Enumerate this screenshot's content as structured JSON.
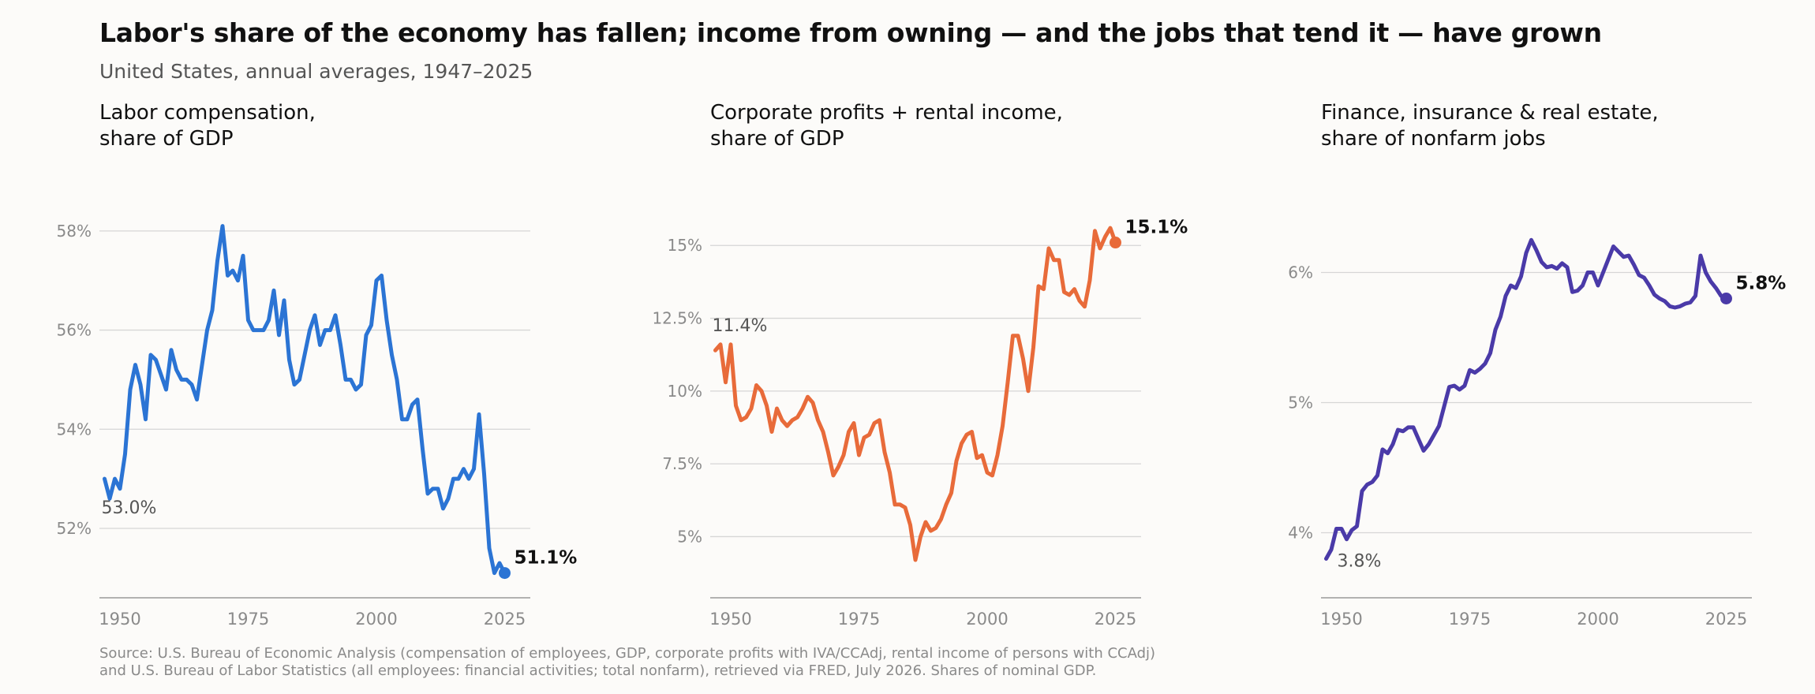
{
  "title": "Labor's share of the economy has fallen; income from owning — and the jobs that tend it — have grown",
  "subtitle": "United States, annual averages, 1947–2025",
  "source": [
    "Source: U.S. Bureau of Economic Analysis (compensation of employees, GDP, corporate profits with IVA/CCAdj, rental income of persons with CCAdj)",
    "and U.S. Bureau of Labor Statistics (all employees: financial activities; total nonfarm), retrieved via FRED, July 2026. Shares of nominal GDP."
  ],
  "chart_data": [
    {
      "type": "line",
      "title_lines": [
        "Labor compensation,",
        "share of GDP"
      ],
      "color": "#2b74d4",
      "x": [
        1947,
        1948,
        1949,
        1950,
        1951,
        1952,
        1953,
        1954,
        1955,
        1956,
        1957,
        1958,
        1959,
        1960,
        1961,
        1962,
        1963,
        1964,
        1965,
        1966,
        1967,
        1968,
        1969,
        1970,
        1971,
        1972,
        1973,
        1974,
        1975,
        1976,
        1977,
        1978,
        1979,
        1980,
        1981,
        1982,
        1983,
        1984,
        1985,
        1986,
        1987,
        1988,
        1989,
        1990,
        1991,
        1992,
        1993,
        1994,
        1995,
        1996,
        1997,
        1998,
        1999,
        2000,
        2001,
        2002,
        2003,
        2004,
        2005,
        2006,
        2007,
        2008,
        2009,
        2010,
        2011,
        2012,
        2013,
        2014,
        2015,
        2016,
        2017,
        2018,
        2019,
        2020,
        2021,
        2022,
        2023,
        2024,
        2025
      ],
      "y": [
        53.0,
        52.6,
        53.0,
        52.8,
        53.5,
        54.8,
        55.3,
        54.9,
        54.2,
        55.5,
        55.4,
        55.1,
        54.8,
        55.6,
        55.2,
        55.0,
        55.0,
        54.9,
        54.6,
        55.3,
        56.0,
        56.4,
        57.4,
        58.1,
        57.1,
        57.2,
        57.0,
        57.5,
        56.2,
        56.0,
        56.0,
        56.0,
        56.2,
        56.8,
        55.9,
        56.6,
        55.4,
        54.9,
        55.0,
        55.5,
        56.0,
        56.3,
        55.7,
        56.0,
        56.0,
        56.3,
        55.7,
        55.0,
        55.0,
        54.8,
        54.9,
        55.9,
        56.1,
        57.0,
        57.1,
        56.2,
        55.5,
        55.0,
        54.2,
        54.2,
        54.5,
        54.6,
        53.6,
        52.7,
        52.8,
        52.8,
        52.4,
        52.6,
        53.0,
        53.0,
        53.2,
        53.0,
        53.2,
        54.3,
        53.1,
        51.6,
        51.1,
        51.3,
        51.1
      ],
      "ylim": [
        50.6,
        59.0
      ],
      "xlim": [
        1946,
        2030
      ],
      "yticks": [
        52,
        54,
        56,
        58
      ],
      "ytick_labels": [
        "52%",
        "54%",
        "56%",
        "58%"
      ],
      "xticks": [
        1950,
        1975,
        2000,
        2025
      ],
      "xtick_labels": [
        "1950",
        "1975",
        "2000",
        "2025"
      ],
      "start_label": "53.0%",
      "end_label": "51.1%"
    },
    {
      "type": "line",
      "title_lines": [
        "Corporate profits + rental income,",
        "share of GDP"
      ],
      "color": "#e86b3a",
      "x": [
        1947,
        1948,
        1949,
        1950,
        1951,
        1952,
        1953,
        1954,
        1955,
        1956,
        1957,
        1958,
        1959,
        1960,
        1961,
        1962,
        1963,
        1964,
        1965,
        1966,
        1967,
        1968,
        1969,
        1970,
        1971,
        1972,
        1973,
        1974,
        1975,
        1976,
        1977,
        1978,
        1979,
        1980,
        1981,
        1982,
        1983,
        1984,
        1985,
        1986,
        1987,
        1988,
        1989,
        1990,
        1991,
        1992,
        1993,
        1994,
        1995,
        1996,
        1997,
        1998,
        1999,
        2000,
        2001,
        2002,
        2003,
        2004,
        2005,
        2006,
        2007,
        2008,
        2009,
        2010,
        2011,
        2012,
        2013,
        2014,
        2015,
        2016,
        2017,
        2018,
        2019,
        2020,
        2021,
        2022,
        2023,
        2024,
        2025
      ],
      "y": [
        11.4,
        11.6,
        10.3,
        11.6,
        9.5,
        9.0,
        9.1,
        9.4,
        10.2,
        10.0,
        9.5,
        8.6,
        9.4,
        9.0,
        8.8,
        9.0,
        9.1,
        9.4,
        9.8,
        9.6,
        9.0,
        8.6,
        7.9,
        7.1,
        7.4,
        7.8,
        8.6,
        8.9,
        7.8,
        8.4,
        8.5,
        8.9,
        9.0,
        7.9,
        7.2,
        6.1,
        6.1,
        6.0,
        5.4,
        4.2,
        5.0,
        5.5,
        5.2,
        5.3,
        5.6,
        6.1,
        6.5,
        7.6,
        8.2,
        8.5,
        8.6,
        7.7,
        7.8,
        7.2,
        7.1,
        7.8,
        8.8,
        10.3,
        11.9,
        11.9,
        11.1,
        10.0,
        11.5,
        13.6,
        13.5,
        14.9,
        14.5,
        14.5,
        13.4,
        13.3,
        13.5,
        13.1,
        12.9,
        13.8,
        15.5,
        14.9,
        15.3,
        15.6,
        15.1
      ],
      "ylim": [
        2.9,
        17.2
      ],
      "xlim": [
        1946,
        2030
      ],
      "yticks": [
        5,
        7.5,
        10,
        12.5,
        15
      ],
      "ytick_labels": [
        "5%",
        "7.5%",
        "10%",
        "12.5%",
        "15%"
      ],
      "xticks": [
        1950,
        1975,
        2000,
        2025
      ],
      "xtick_labels": [
        "1950",
        "1975",
        "2000",
        "2025"
      ],
      "start_label": "11.4%",
      "end_label": "15.1%"
    },
    {
      "type": "line",
      "title_lines": [
        "Finance, insurance & real estate,",
        "share of nonfarm jobs"
      ],
      "color": "#4a3aa8",
      "x": [
        1947,
        1948,
        1949,
        1950,
        1951,
        1952,
        1953,
        1954,
        1955,
        1956,
        1957,
        1958,
        1959,
        1960,
        1961,
        1962,
        1963,
        1964,
        1965,
        1966,
        1967,
        1968,
        1969,
        1970,
        1971,
        1972,
        1973,
        1974,
        1975,
        1976,
        1977,
        1978,
        1979,
        1980,
        1981,
        1982,
        1983,
        1984,
        1985,
        1986,
        1987,
        1988,
        1989,
        1990,
        1991,
        1992,
        1993,
        1994,
        1995,
        1996,
        1997,
        1998,
        1999,
        2000,
        2001,
        2002,
        2003,
        2004,
        2005,
        2006,
        2007,
        2008,
        2009,
        2010,
        2011,
        2012,
        2013,
        2014,
        2015,
        2016,
        2017,
        2018,
        2019,
        2020,
        2021,
        2022,
        2023,
        2024,
        2025
      ],
      "y": [
        3.8,
        3.87,
        4.03,
        4.03,
        3.95,
        4.02,
        4.05,
        4.32,
        4.37,
        4.39,
        4.44,
        4.64,
        4.61,
        4.68,
        4.79,
        4.78,
        4.81,
        4.81,
        4.72,
        4.63,
        4.68,
        4.75,
        4.82,
        4.97,
        5.12,
        5.13,
        5.1,
        5.13,
        5.25,
        5.23,
        5.26,
        5.3,
        5.38,
        5.56,
        5.66,
        5.82,
        5.9,
        5.88,
        5.97,
        6.15,
        6.25,
        6.17,
        6.08,
        6.04,
        6.05,
        6.03,
        6.07,
        6.04,
        5.85,
        5.86,
        5.9,
        6.0,
        6.0,
        5.9,
        6.0,
        6.1,
        6.2,
        6.16,
        6.12,
        6.13,
        6.06,
        5.98,
        5.96,
        5.9,
        5.83,
        5.8,
        5.78,
        5.74,
        5.73,
        5.74,
        5.76,
        5.77,
        5.82,
        6.13,
        6.0,
        5.93,
        5.88,
        5.82,
        5.8
      ],
      "ylim": [
        3.5,
        6.7
      ],
      "xlim": [
        1946,
        2030
      ],
      "yticks": [
        4,
        5,
        6
      ],
      "ytick_labels": [
        "4%",
        "5%",
        "6%"
      ],
      "xticks": [
        1950,
        1975,
        2000,
        2025
      ],
      "xtick_labels": [
        "1950",
        "1975",
        "2000",
        "2025"
      ],
      "start_label": "3.8%",
      "end_label": "5.8%"
    }
  ]
}
